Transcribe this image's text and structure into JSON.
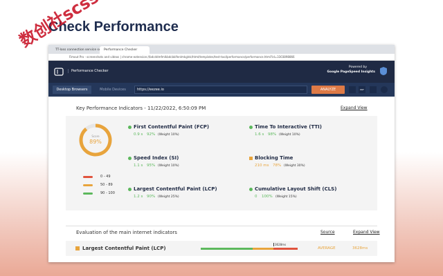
{
  "title": "Check Performance",
  "watermark": "数创社scss6",
  "tabs": [
    "TT-loss connection service session",
    "Performance Checker"
  ],
  "address": "Fimout Pro - screenshots and videos  |  chrome-extension://bdcddmfmlkbdcbklfenlmkglnk/html/templates/test-tool/performance/performance.html?id=3303898866",
  "app": {
    "name": "Performance Checker",
    "powered_by": "Powered by",
    "powered_name": "Google PageSpeed Insights",
    "tab_desktop": "Desktop Browsers",
    "tab_mobile": "Mobile Devices",
    "url": "https://eezee.io",
    "analyze": "ANALYZE",
    "pdf": "PDF"
  },
  "kpi": {
    "heading": "Key Performance Indicators - 11/22/2022, 6:50:09 PM",
    "expand": "Expand View",
    "score": {
      "value": 89,
      "label": "89%"
    },
    "score_caption": "Score",
    "legend": [
      {
        "color": "#e0533d",
        "label": "0 - 49"
      },
      {
        "color": "#e8a43c",
        "label": "50 - 89"
      },
      {
        "color": "#5cb85c",
        "label": "90 - 100"
      }
    ],
    "metrics": [
      {
        "name": "First Contentful Paint (FCP)",
        "time": "0.9 s",
        "pct": "92%",
        "weight": "(Weight 10%)",
        "color": "#5cb85c",
        "shape": "dot"
      },
      {
        "name": "Time To Interactive (TTI)",
        "time": "1.6 s",
        "pct": "98%",
        "weight": "(Weight 10%)",
        "color": "#5cb85c",
        "shape": "dot"
      },
      {
        "name": "Speed Index (SI)",
        "time": "1.1 s",
        "pct": "95%",
        "weight": "(Weight 10%)",
        "color": "#5cb85c",
        "shape": "dot"
      },
      {
        "name": "Blocking Time",
        "time": "210 ms",
        "pct": "78%",
        "weight": "(Weight 30%)",
        "color": "#e8a43c",
        "shape": "square"
      },
      {
        "name": "Largest Contentful Paint (LCP)",
        "time": "1.2 s",
        "pct": "90%",
        "weight": "(Weight 25%)",
        "color": "#5cb85c",
        "shape": "dot"
      },
      {
        "name": "Cumulative Layout Shift (CLS)",
        "time": "0",
        "pct": "100%",
        "weight": "(Weight 15%)",
        "color": "#5cb85c",
        "shape": "dot"
      }
    ]
  },
  "eval": {
    "heading": "Evaluation of the main internet indicators",
    "source": "Source",
    "expand": "Expand View",
    "row": {
      "name": "Largest Contentful Paint (LCP)",
      "marker": "3628ms",
      "status": "AVERAGE",
      "value": "3628ms"
    }
  }
}
